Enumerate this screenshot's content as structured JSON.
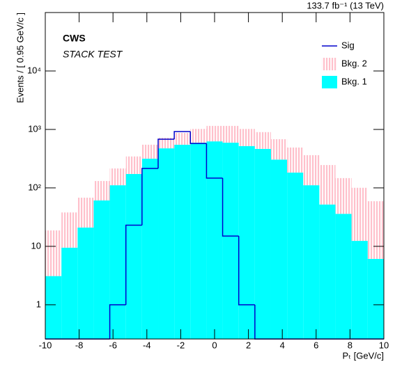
{
  "chart_data": {
    "type": "stacked_histogram",
    "header": "133.7 fb⁻¹ (13 TeV)",
    "title": "CWS",
    "subtitle": "STACK TEST",
    "x_label": "Pₜ [GeV/c]",
    "y_label": "Events / [ 0.95 GeV/c ]",
    "bins": [
      -10,
      -9.048,
      -8.095,
      -7.143,
      -6.19,
      -5.238,
      -4.286,
      -3.333,
      -2.381,
      -1.429,
      -0.476,
      0.476,
      1.429,
      2.381,
      3.333,
      4.286,
      5.238,
      6.19,
      7.143,
      8.095,
      9.048,
      10
    ],
    "series": [
      {
        "name": "Bkg. 1",
        "color": "#00ffff",
        "stack": true,
        "values": [
          3.1,
          9.5,
          21,
          61,
          111,
          173,
          316,
          475,
          548,
          594,
          625,
          594,
          520,
          465,
          305,
          183,
          111,
          52,
          36,
          12.4,
          6.1
        ]
      },
      {
        "name": "Bkg. 2",
        "color": "#ffc0cb",
        "stack": true,
        "hatched": true,
        "values": [
          15.6,
          28.5,
          47,
          70,
          104,
          172,
          232,
          245,
          322,
          426,
          525,
          556,
          500,
          435,
          375,
          307,
          252,
          194,
          111,
          88,
          53
        ]
      },
      {
        "name": "Sig",
        "color": "#0000cc",
        "stack": false,
        "values": [
          0,
          0,
          0,
          0,
          1,
          23,
          215,
          680,
          920,
          575,
          147,
          15,
          1,
          0,
          0,
          0,
          0,
          0,
          0,
          0,
          0
        ]
      }
    ],
    "legend_order": [
      2,
      1,
      0
    ],
    "xlim": [
      -10,
      10
    ],
    "xticks": [
      -10,
      -8,
      -6,
      -4,
      -2,
      0,
      2,
      4,
      6,
      8,
      10
    ],
    "ylim": [
      0.26,
      100000
    ],
    "yticks": [
      1,
      10,
      {
        "value": 100,
        "label": "10²"
      },
      {
        "value": 1000,
        "label": "10³"
      },
      {
        "value": 10000,
        "label": "10⁴"
      }
    ],
    "log_y": true,
    "legend": "upper right"
  }
}
